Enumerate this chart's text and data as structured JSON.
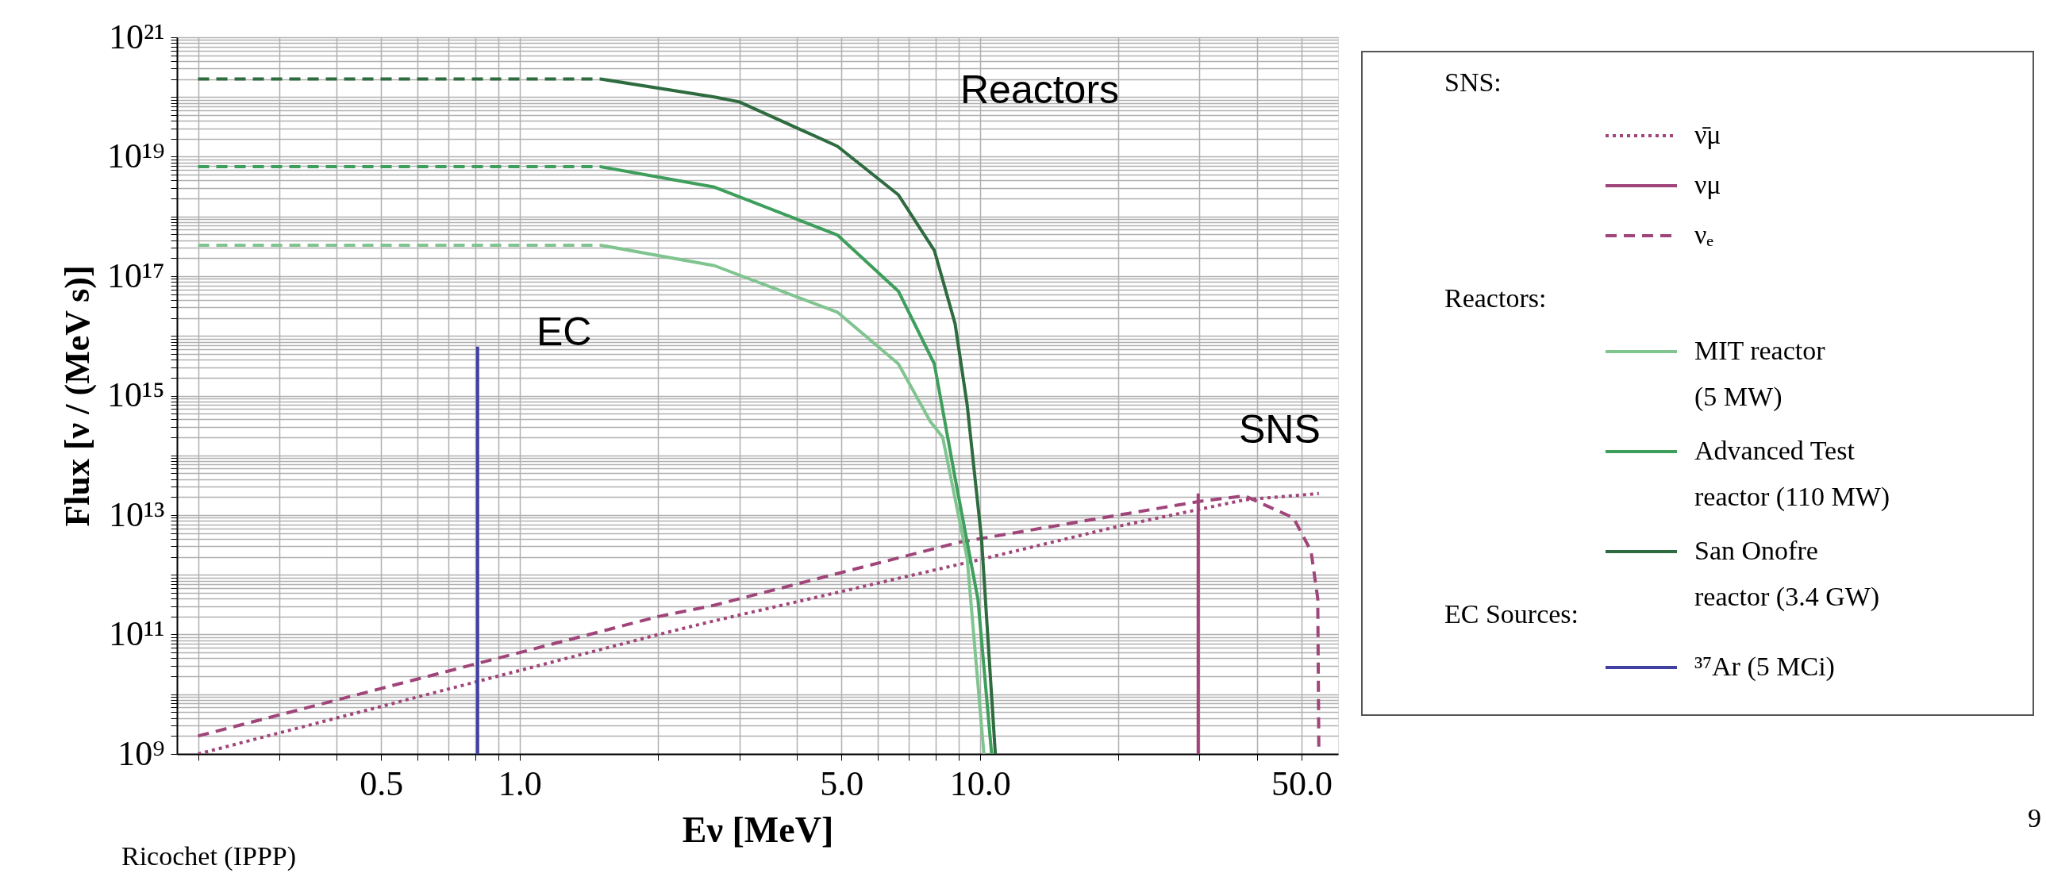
{
  "chart_data": {
    "type": "line",
    "xlabel": "Eν [MeV]",
    "ylabel": "Flux [ν / (MeV s)]",
    "log": "xy",
    "grid": true,
    "legend": "right",
    "xlim": [
      0.18,
      60
    ],
    "ylim": [
      1000000000.0,
      1e+21
    ],
    "xticks": [
      {
        "value": 0.2,
        "label": null
      },
      {
        "value": 0.3,
        "label": null
      },
      {
        "value": 0.4,
        "label": null
      },
      0.5,
      {
        "value": 0.6,
        "label": null
      },
      {
        "value": 0.7,
        "label": null
      },
      {
        "value": 0.8,
        "label": null
      },
      {
        "value": 0.9,
        "label": null
      },
      {
        "value": 1,
        "label": "1.0"
      },
      {
        "value": 2,
        "label": null
      },
      {
        "value": 3,
        "label": null
      },
      {
        "value": 4,
        "label": null
      },
      {
        "value": 5,
        "label": "5.0"
      },
      {
        "value": 6,
        "label": null
      },
      {
        "value": 7,
        "label": null
      },
      {
        "value": 8,
        "label": null
      },
      {
        "value": 9,
        "label": null
      },
      {
        "value": 10,
        "label": "10.0"
      },
      {
        "value": 20,
        "label": null
      },
      {
        "value": 30,
        "label": null
      },
      {
        "value": 40,
        "label": null
      },
      {
        "value": 50,
        "label": "50.0"
      }
    ],
    "yticks": [
      {
        "value": 1000000000.0,
        "label": "10⁹"
      },
      {
        "value": 2000000000.0,
        "label": null
      },
      {
        "value": 3000000000.0,
        "label": null
      },
      {
        "value": 4000000000.0,
        "label": null
      },
      {
        "value": 5000000000.0,
        "label": null
      },
      {
        "value": 6000000000.0,
        "label": null
      },
      {
        "value": 7000000000.0,
        "label": null
      },
      {
        "value": 8000000000.0,
        "label": null
      },
      {
        "value": 9000000000.0,
        "label": null
      },
      {
        "value": 10000000000.0,
        "label": null
      },
      {
        "value": 20000000000.0,
        "label": null
      },
      {
        "value": 30000000000.0,
        "label": null
      },
      {
        "value": 40000000000.0,
        "label": null
      },
      {
        "value": 50000000000.0,
        "label": null
      },
      {
        "value": 60000000000.0,
        "label": null
      },
      {
        "value": 70000000000.0,
        "label": null
      },
      {
        "value": 80000000000.0,
        "label": null
      },
      {
        "value": 90000000000.0,
        "label": null
      },
      {
        "value": 100000000000.0,
        "label": "10¹¹"
      },
      {
        "value": 200000000000.0,
        "label": null
      },
      {
        "value": 300000000000.0,
        "label": null
      },
      {
        "value": 400000000000.0,
        "label": null
      },
      {
        "value": 500000000000.0,
        "label": null
      },
      {
        "value": 600000000000.0,
        "label": null
      },
      {
        "value": 700000000000.0,
        "label": null
      },
      {
        "value": 800000000000.0,
        "label": null
      },
      {
        "value": 900000000000.0,
        "label": null
      },
      {
        "value": 1000000000000.0,
        "label": null
      },
      {
        "value": 2000000000000.0,
        "label": null
      },
      {
        "value": 3000000000000.0,
        "label": null
      },
      {
        "value": 4000000000000.0,
        "label": null
      },
      {
        "value": 5000000000000.0,
        "label": null
      },
      {
        "value": 6000000000000.0,
        "label": null
      },
      {
        "value": 7000000000000.0,
        "label": null
      },
      {
        "value": 8000000000000.0,
        "label": null
      },
      {
        "value": 9000000000000.0,
        "label": null
      },
      {
        "value": 10000000000000.0,
        "label": "10¹³"
      },
      {
        "value": 20000000000000.0,
        "label": null
      },
      {
        "value": 30000000000000.0,
        "label": null
      },
      {
        "value": 40000000000000.0,
        "label": null
      },
      {
        "value": 50000000000000.0,
        "label": null
      },
      {
        "value": 60000000000000.0,
        "label": null
      },
      {
        "value": 70000000000000.0,
        "label": null
      },
      {
        "value": 80000000000000.0,
        "label": null
      },
      {
        "value": 90000000000000.0,
        "label": null
      },
      {
        "value": 100000000000000.0,
        "label": null
      },
      {
        "value": 200000000000000.0,
        "label": null
      },
      {
        "value": 300000000000000.0,
        "label": null
      },
      {
        "value": 400000000000000.0,
        "label": null
      },
      {
        "value": 500000000000000.0,
        "label": null
      },
      {
        "value": 600000000000000.0,
        "label": null
      },
      {
        "value": 700000000000000.0,
        "label": null
      },
      {
        "value": 800000000000000.0,
        "label": null
      },
      {
        "value": 900000000000000.0,
        "label": null
      },
      {
        "value": 1000000000000000.0,
        "label": "10¹⁵"
      },
      {
        "value": 2000000000000000.0,
        "label": null
      },
      {
        "value": 3000000000000000.0,
        "label": null
      },
      {
        "value": 4000000000000000.0,
        "label": null
      },
      {
        "value": 5000000000000000.0,
        "label": null
      },
      {
        "value": 6000000000000000.0,
        "label": null
      },
      {
        "value": 7000000000000000.0,
        "label": null
      },
      {
        "value": 8000000000000000.0,
        "label": null
      },
      {
        "value": 9000000000000000.0,
        "label": null
      },
      {
        "value": 1e+16,
        "label": null
      },
      {
        "value": 2e+16,
        "label": null
      },
      {
        "value": 3e+16,
        "label": null
      },
      {
        "value": 4e+16,
        "label": null
      },
      {
        "value": 5e+16,
        "label": null
      },
      {
        "value": 6e+16,
        "label": null
      },
      {
        "value": 7e+16,
        "label": null
      },
      {
        "value": 8e+16,
        "label": null
      },
      {
        "value": 9e+16,
        "label": null
      },
      {
        "value": 1e+17,
        "label": "10¹⁷"
      },
      {
        "value": 2e+17,
        "label": null
      },
      {
        "value": 3e+17,
        "label": null
      },
      {
        "value": 4e+17,
        "label": null
      },
      {
        "value": 5e+17,
        "label": null
      },
      {
        "value": 6e+17,
        "label": null
      },
      {
        "value": 7e+17,
        "label": null
      },
      {
        "value": 8e+17,
        "label": null
      },
      {
        "value": 9e+17,
        "label": null
      },
      {
        "value": 1e+18,
        "label": null
      },
      {
        "value": 2e+18,
        "label": null
      },
      {
        "value": 3e+18,
        "label": null
      },
      {
        "value": 4e+18,
        "label": null
      },
      {
        "value": 5e+18,
        "label": null
      },
      {
        "value": 6e+18,
        "label": null
      },
      {
        "value": 7e+18,
        "label": null
      },
      {
        "value": 8e+18,
        "label": null
      },
      {
        "value": 9e+18,
        "label": null
      },
      {
        "value": 1e+19,
        "label": "10¹⁹"
      },
      {
        "value": 2e+19,
        "label": null
      },
      {
        "value": 3e+19,
        "label": null
      },
      {
        "value": 4e+19,
        "label": null
      },
      {
        "value": 5e+19,
        "label": null
      },
      {
        "value": 6e+19,
        "label": null
      },
      {
        "value": 7e+19,
        "label": null
      },
      {
        "value": 8e+19,
        "label": null
      },
      {
        "value": 9e+19,
        "label": null
      },
      {
        "value": 1e+20,
        "label": null
      },
      {
        "value": 2e+20,
        "label": null
      },
      {
        "value": 3e+20,
        "label": null
      },
      {
        "value": 4e+20,
        "label": null
      },
      {
        "value": 5e+20,
        "label": null
      },
      {
        "value": 6e+20,
        "label": null
      },
      {
        "value": 7e+20,
        "label": null
      },
      {
        "value": 8e+20,
        "label": null
      },
      {
        "value": 9e+20,
        "label": null
      },
      {
        "value": 1e+21,
        "label": "10²¹"
      }
    ],
    "series": [
      {
        "name": "ν̄μ",
        "color": "#a0457a",
        "line_style": "dotted",
        "x": [
          0.2,
          2,
          2.65,
          10,
          20,
          37.6,
          54.5
        ],
        "values": [
          1000000000.0,
          100000000000.0,
          170000000000.0,
          1800000000000.0,
          6500000000000.0,
          18000000000000.0,
          23000000000000.0
        ]
      },
      {
        "name": "νμ",
        "color": "#a0457a",
        "line_style": "solid",
        "x": [
          29.8,
          29.8
        ],
        "values": [
          1000000000.0,
          23000000000000.0
        ]
      },
      {
        "name": "νₑ",
        "color": "#a0457a",
        "line_style": "dashed",
        "x": [
          0.2,
          2,
          2.65,
          9,
          20,
          30,
          37.6,
          48,
          52.4,
          54.2,
          54.5
        ],
        "values": [
          2000000000.0,
          200000000000.0,
          310000000000.0,
          3500000000000.0,
          10000000000000.0,
          17000000000000.0,
          21000000000000.0,
          9000000000000.0,
          2500000000000.0,
          400000000000.0,
          1000000000.0
        ]
      },
      {
        "name": "MIT reactor (5 MW)",
        "color": "#80c490",
        "line_style": "solid",
        "x": [
          1.5,
          2.65,
          4.9,
          6.65,
          7.8,
          8.3,
          9.38,
          10.2
        ],
        "values": [
          3.3e+17,
          1.5e+17,
          2.5e+16,
          3400000000000000.0,
          370000000000000.0,
          200000000000000.0,
          1900000000000.0,
          1000000000.0
        ]
      },
      {
        "name": "Advanced Test reactor (110 MW)",
        "color": "#3e9e5c",
        "line_style": "solid",
        "x": [
          1.5,
          2.65,
          4.9,
          6.65,
          7.96,
          8.83,
          9.9,
          10.6
        ],
        "values": [
          6.8e+18,
          3.1e+18,
          4.9e+17,
          5.6e+16,
          3400000000000000.0,
          42000000000000.0,
          390000000000.0,
          1000000000.0
        ]
      },
      {
        "name": "San Onofre reactor (3.4 GW)",
        "color": "#2e6b3f",
        "line_style": "solid",
        "x": [
          1.5,
          2.65,
          3.0,
          4.9,
          6.65,
          7.96,
          8.83,
          9.38,
          10.08,
          10.8
        ],
        "values": [
          2e+20,
          1e+20,
          8.3e+19,
          1.5e+19,
          2.3e+18,
          2.7e+17,
          1.6e+16,
          700000000000000.0,
          4000000000000.0,
          1000000000.0
        ]
      },
      {
        "name": "³⁷Ar (5 MCi)",
        "color": "#4040a0",
        "line_style": "solid",
        "x": [
          0.81,
          0.81
        ],
        "values": [
          1000000000.0,
          6600000000000000.0
        ]
      },
      {
        "color": "#80c490",
        "line_style": "dashed",
        "x": [
          0.2,
          1.5
        ],
        "values": [
          3.3e+17,
          3.3e+17
        ]
      },
      {
        "color": "#3e9e5c",
        "line_style": "dashed",
        "x": [
          0.2,
          1.5
        ],
        "values": [
          6.8e+18,
          6.8e+18
        ]
      },
      {
        "color": "#2e6b3f",
        "line_style": "dashed",
        "x": [
          0.2,
          1.5
        ],
        "values": [
          2e+20,
          2e+20
        ]
      }
    ],
    "annotations": [
      "Reactors",
      "EC",
      "SNS",
      "SNS:",
      "Reactors:",
      "EC Sources:",
      "Ricochet (IPPP)",
      "9"
    ]
  }
}
